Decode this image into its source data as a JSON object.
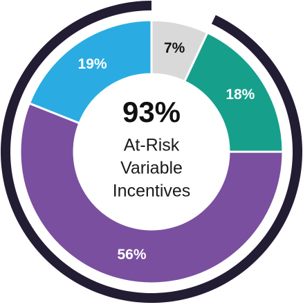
{
  "chart_data": {
    "type": "donut",
    "categories": [
      null,
      null,
      null,
      null
    ],
    "values": [
      7,
      18,
      56,
      19
    ],
    "value_labels": [
      "7%",
      "18%",
      "56%",
      "19%"
    ],
    "colors": [
      "#d9d9d9",
      "#16a08c",
      "#7a4f9f",
      "#2aace2"
    ],
    "label_colors": [
      "#111111",
      "#ffffff",
      "#ffffff",
      "#ffffff"
    ],
    "center": {
      "value": 93,
      "label": "93%",
      "color": "#221d33",
      "lines": [
        "At-Risk",
        "Variable",
        "Incentives"
      ]
    }
  }
}
